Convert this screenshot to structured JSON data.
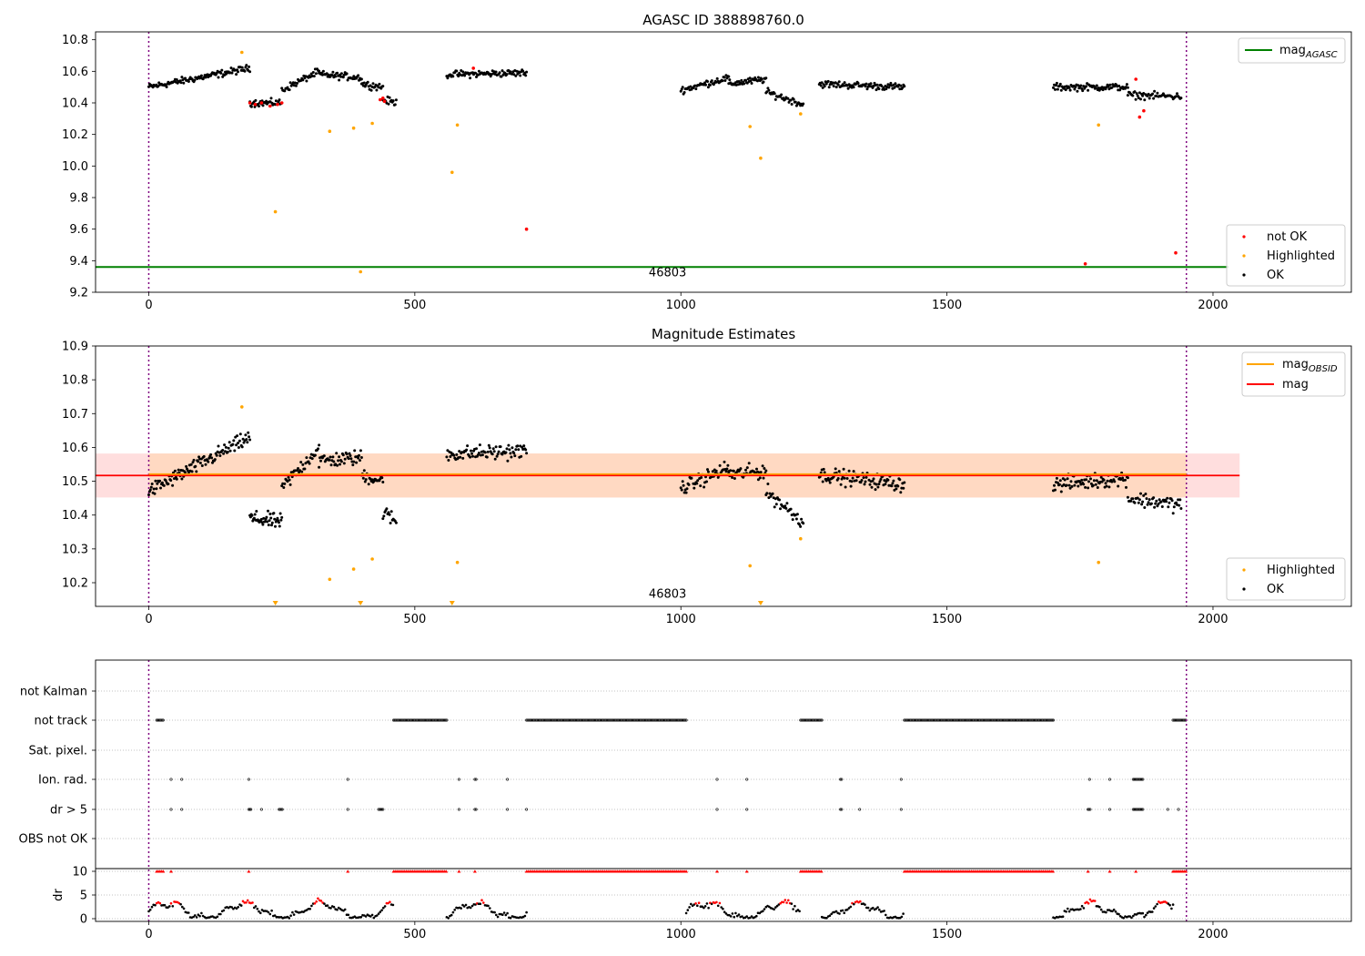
{
  "chart_data": [
    {
      "type": "scatter",
      "title": "AGASC ID 388898760.0",
      "xlim": [
        -100,
        2260
      ],
      "ylim": [
        9.2,
        10.85
      ],
      "x_ticks": [
        0,
        500,
        1000,
        1500,
        2000
      ],
      "y_ticks": [
        9.2,
        9.4,
        9.6,
        9.8,
        10.0,
        10.2,
        10.4,
        10.6,
        10.8
      ],
      "y_tick_labels": [
        "9.2",
        "9.4",
        "9.6",
        "9.8",
        "10.0",
        "10.2",
        "10.4",
        "10.6",
        "10.8"
      ],
      "vlines": [
        0,
        1950
      ],
      "hline": {
        "name": "mag",
        "sub": "AGASC",
        "y": 9.36,
        "color": "#008000"
      },
      "annotation": {
        "text": "46803",
        "x": 975,
        "y": 9.25
      },
      "legend_lines": [
        {
          "label": "mag",
          "sub": "AGASC",
          "color": "#008000"
        }
      ],
      "legend_points": [
        {
          "label": "not OK",
          "color": "#ff0000"
        },
        {
          "label": "Highlighted",
          "color": "#ffa500"
        },
        {
          "label": "OK",
          "color": "#000000"
        }
      ],
      "segments": [
        {
          "x0": 0,
          "x1": 190,
          "y0": 10.5,
          "y1": 10.62,
          "n": 120
        },
        {
          "x0": 190,
          "x1": 250,
          "y0": 10.4,
          "y1": 10.4,
          "n": 40
        },
        {
          "x0": 250,
          "x1": 320,
          "y0": 10.48,
          "y1": 10.6,
          "n": 40
        },
        {
          "x0": 320,
          "x1": 400,
          "y0": 10.58,
          "y1": 10.56,
          "n": 50
        },
        {
          "x0": 400,
          "x1": 440,
          "y0": 10.52,
          "y1": 10.5,
          "n": 25
        },
        {
          "x0": 440,
          "x1": 465,
          "y0": 10.42,
          "y1": 10.4,
          "n": 15
        },
        {
          "x0": 560,
          "x1": 710,
          "y0": 10.58,
          "y1": 10.59,
          "n": 90
        },
        {
          "x0": 1000,
          "x1": 1090,
          "y0": 10.48,
          "y1": 10.56,
          "n": 55
        },
        {
          "x0": 1090,
          "x1": 1160,
          "y0": 10.52,
          "y1": 10.55,
          "n": 45
        },
        {
          "x0": 1160,
          "x1": 1230,
          "y0": 10.47,
          "y1": 10.39,
          "n": 40
        },
        {
          "x0": 1260,
          "x1": 1420,
          "y0": 10.52,
          "y1": 10.5,
          "n": 95
        },
        {
          "x0": 1700,
          "x1": 1840,
          "y0": 10.5,
          "y1": 10.5,
          "n": 85
        },
        {
          "x0": 1840,
          "x1": 1940,
          "y0": 10.45,
          "y1": 10.44,
          "n": 55
        }
      ],
      "not_ok": [
        {
          "x": 190,
          "y": 10.4
        },
        {
          "x": 200,
          "y": 10.39
        },
        {
          "x": 212,
          "y": 10.4
        },
        {
          "x": 228,
          "y": 10.38
        },
        {
          "x": 242,
          "y": 10.39
        },
        {
          "x": 250,
          "y": 10.4
        },
        {
          "x": 435,
          "y": 10.42
        },
        {
          "x": 440,
          "y": 10.43
        },
        {
          "x": 443,
          "y": 10.41
        },
        {
          "x": 610,
          "y": 10.62
        },
        {
          "x": 710,
          "y": 9.6
        },
        {
          "x": 1760,
          "y": 9.38
        },
        {
          "x": 1855,
          "y": 10.55
        },
        {
          "x": 1862,
          "y": 10.31
        },
        {
          "x": 1870,
          "y": 10.35
        },
        {
          "x": 1930,
          "y": 9.45
        }
      ],
      "highlighted": [
        {
          "x": 175,
          "y": 10.72
        },
        {
          "x": 238,
          "y": 9.71
        },
        {
          "x": 340,
          "y": 10.22
        },
        {
          "x": 385,
          "y": 10.24
        },
        {
          "x": 398,
          "y": 9.33
        },
        {
          "x": 420,
          "y": 10.27
        },
        {
          "x": 570,
          "y": 9.96
        },
        {
          "x": 580,
          "y": 10.26
        },
        {
          "x": 1130,
          "y": 10.25
        },
        {
          "x": 1150,
          "y": 10.05
        },
        {
          "x": 1225,
          "y": 10.33
        },
        {
          "x": 1785,
          "y": 10.26
        }
      ]
    },
    {
      "type": "scatter",
      "title": "Magnitude Estimates",
      "xlim": [
        -100,
        2260
      ],
      "ylim": [
        10.13,
        10.9
      ],
      "x_ticks": [
        0,
        500,
        1000,
        1500,
        2000
      ],
      "y_ticks": [
        10.2,
        10.3,
        10.4,
        10.5,
        10.6,
        10.7,
        10.8,
        10.9
      ],
      "y_tick_labels": [
        "10.2",
        "10.3",
        "10.4",
        "10.5",
        "10.6",
        "10.7",
        "10.8",
        "10.9"
      ],
      "vlines": [
        0,
        1950
      ],
      "band": {
        "x0": -100,
        "x1": 2050,
        "y0": 10.452,
        "y1": 10.582,
        "color": "#ffdede"
      },
      "obs_band": {
        "x0": 0,
        "x1": 1950,
        "y0": 10.452,
        "y1": 10.582,
        "color": "#ffd9c2"
      },
      "mag_line": {
        "x0": -100,
        "x1": 2050,
        "y": 10.517,
        "color": "#ff0000"
      },
      "mag_obsid_line": {
        "x0": 0,
        "x1": 1950,
        "y": 10.517,
        "color": "#ffa500"
      },
      "annotation": {
        "text": "46803",
        "x": 975,
        "y": 10.15
      },
      "legend_lines": [
        {
          "label": "mag",
          "sub": "OBSID",
          "color": "#ffa500"
        },
        {
          "label": "mag",
          "sub": "",
          "color": "#ff0000"
        }
      ],
      "legend_points": [
        {
          "label": "Highlighted",
          "color": "#ffa500"
        },
        {
          "label": "OK",
          "color": "#000000"
        }
      ],
      "segments": [
        {
          "x0": 0,
          "x1": 190,
          "y0": 10.47,
          "y1": 10.63,
          "n": 120
        },
        {
          "x0": 190,
          "x1": 250,
          "y0": 10.39,
          "y1": 10.38,
          "n": 45
        },
        {
          "x0": 250,
          "x1": 320,
          "y0": 10.48,
          "y1": 10.6,
          "n": 40
        },
        {
          "x0": 320,
          "x1": 400,
          "y0": 10.56,
          "y1": 10.57,
          "n": 50
        },
        {
          "x0": 400,
          "x1": 440,
          "y0": 10.52,
          "y1": 10.5,
          "n": 25
        },
        {
          "x0": 440,
          "x1": 465,
          "y0": 10.41,
          "y1": 10.38,
          "n": 15
        },
        {
          "x0": 560,
          "x1": 710,
          "y0": 10.58,
          "y1": 10.59,
          "n": 90
        },
        {
          "x0": 1000,
          "x1": 1090,
          "y0": 10.48,
          "y1": 10.54,
          "n": 55
        },
        {
          "x0": 1090,
          "x1": 1160,
          "y0": 10.52,
          "y1": 10.53,
          "n": 45
        },
        {
          "x0": 1160,
          "x1": 1230,
          "y0": 10.47,
          "y1": 10.38,
          "n": 40
        },
        {
          "x0": 1260,
          "x1": 1420,
          "y0": 10.52,
          "y1": 10.49,
          "n": 95
        },
        {
          "x0": 1700,
          "x1": 1840,
          "y0": 10.49,
          "y1": 10.51,
          "n": 85
        },
        {
          "x0": 1840,
          "x1": 1940,
          "y0": 10.45,
          "y1": 10.43,
          "n": 55
        }
      ],
      "highlighted": [
        {
          "x": 175,
          "y": 10.72
        },
        {
          "x": 340,
          "y": 10.21
        },
        {
          "x": 385,
          "y": 10.24
        },
        {
          "x": 420,
          "y": 10.27
        },
        {
          "x": 580,
          "y": 10.26
        },
        {
          "x": 1130,
          "y": 10.25
        },
        {
          "x": 1225,
          "y": 10.33
        },
        {
          "x": 1785,
          "y": 10.26
        }
      ],
      "below_range_markers": [
        238,
        398,
        570,
        1150
      ]
    },
    {
      "type": "scatter",
      "xlim": [
        -100,
        2260
      ],
      "x_ticks": [
        0,
        500,
        1000,
        1500,
        2000
      ],
      "vlines": [
        0,
        1950
      ],
      "flag_rows": [
        "not Kalman",
        "not track",
        "Sat. pixel.",
        "Ion. rad.",
        "dr > 5",
        "OBS not OK"
      ],
      "flag_ranges": {
        "not track": [
          [
            15,
            28
          ],
          [
            460,
            560
          ],
          [
            710,
            1010
          ],
          [
            1225,
            1265
          ],
          [
            1420,
            1700
          ],
          [
            1925,
            1950
          ]
        ],
        "Ion. rad.": [
          [
            42,
            42
          ],
          [
            62,
            62
          ],
          [
            188,
            188
          ],
          [
            374,
            374
          ],
          [
            583,
            583
          ],
          [
            613,
            616
          ],
          [
            674,
            674
          ],
          [
            1068,
            1068
          ],
          [
            1124,
            1124
          ],
          [
            1300,
            1302
          ],
          [
            1414,
            1414
          ],
          [
            1768,
            1768
          ],
          [
            1806,
            1806
          ],
          [
            1850,
            1868
          ]
        ],
        "dr > 5": [
          [
            42,
            42
          ],
          [
            62,
            62
          ],
          [
            188,
            192
          ],
          [
            212,
            212
          ],
          [
            245,
            252
          ],
          [
            374,
            374
          ],
          [
            432,
            440
          ],
          [
            583,
            583
          ],
          [
            613,
            616
          ],
          [
            674,
            674
          ],
          [
            710,
            710
          ],
          [
            1068,
            1068
          ],
          [
            1124,
            1124
          ],
          [
            1300,
            1302
          ],
          [
            1336,
            1336
          ],
          [
            1414,
            1414
          ],
          [
            1765,
            1770
          ],
          [
            1806,
            1806
          ],
          [
            1850,
            1868
          ],
          [
            1915,
            1915
          ],
          [
            1935,
            1935
          ]
        ]
      },
      "dr_label": "dr",
      "dr_ylim": [
        0,
        10
      ],
      "dr_ticks": [
        0,
        5,
        10
      ],
      "dr_tick_labels": [
        "0",
        "5",
        "10"
      ],
      "dr_saturated_ranges": [
        [
          15,
          28
        ],
        [
          460,
          560
        ],
        [
          710,
          1010
        ],
        [
          1225,
          1265
        ],
        [
          1420,
          1700
        ],
        [
          1925,
          1950
        ]
      ],
      "dr_saturated_isolated": [
        42,
        188,
        374,
        583,
        613,
        1068,
        1124,
        1765,
        1806,
        1855
      ]
    }
  ]
}
